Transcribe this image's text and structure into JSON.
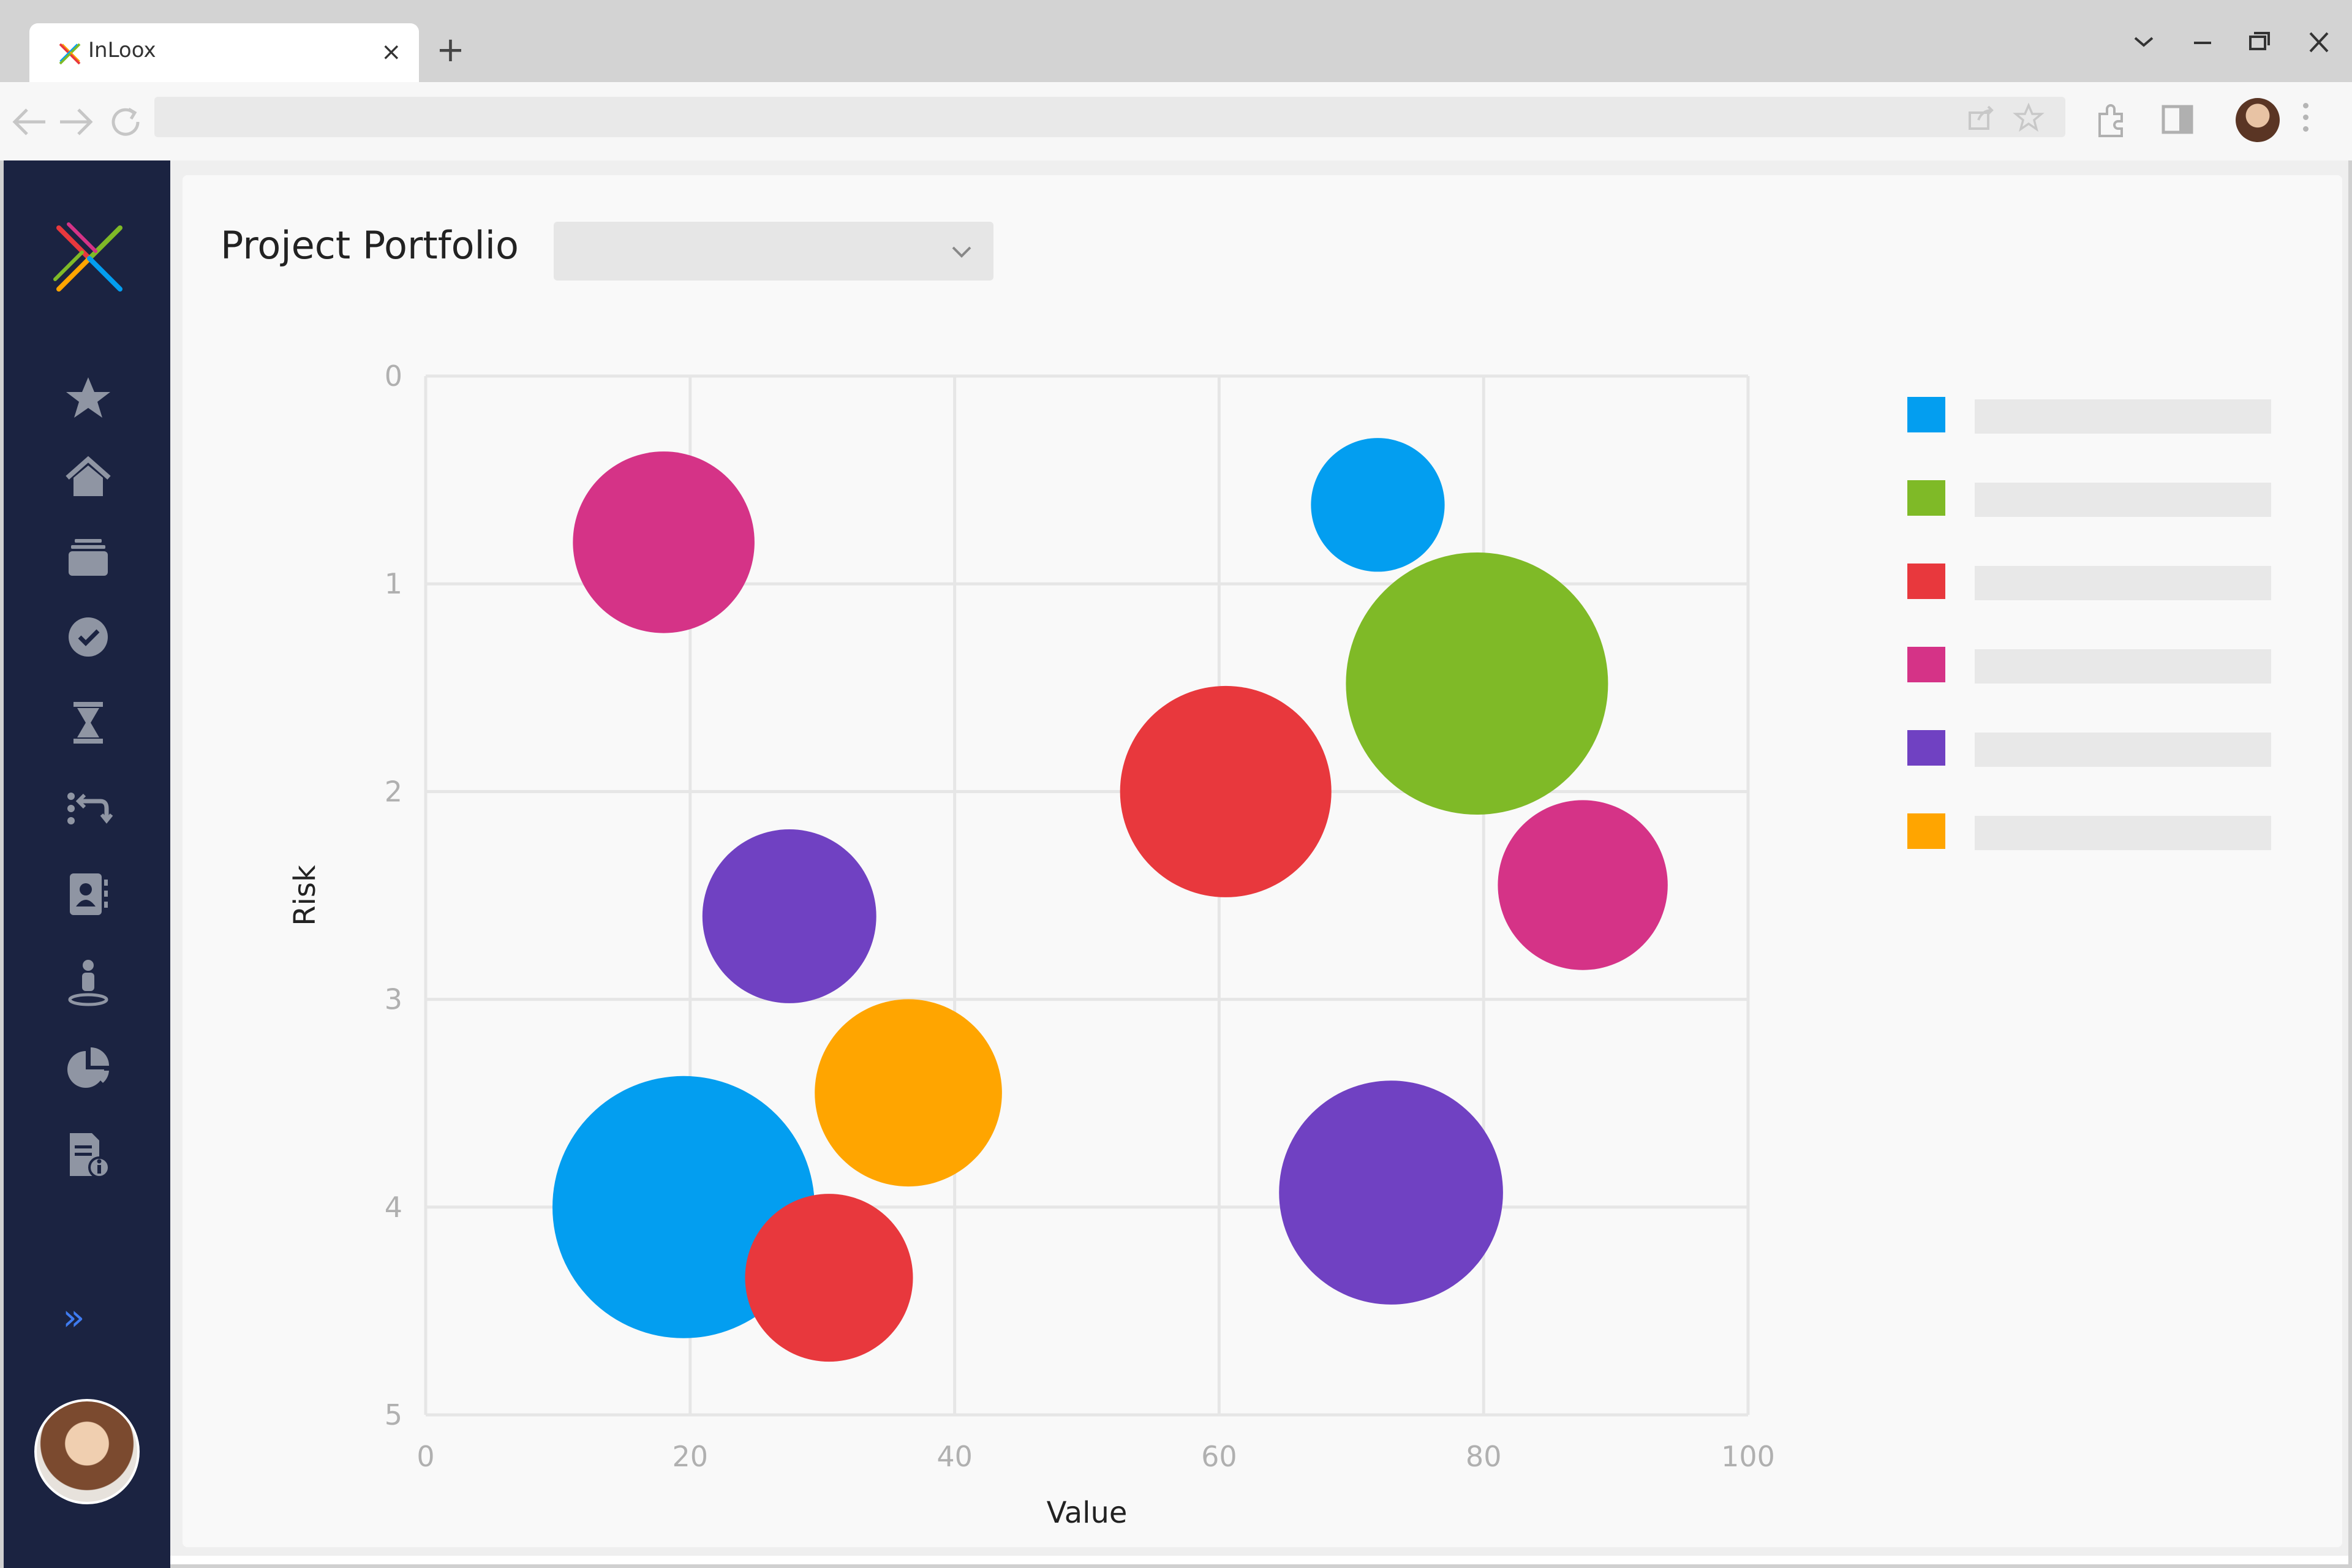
{
  "browser": {
    "tab_title": "InLoox",
    "new_tab_symbol": "+",
    "close_symbol": "×",
    "window_controls": [
      "chevron-down-icon",
      "minimize-icon",
      "restore-icon",
      "close-icon"
    ]
  },
  "sidebar": {
    "items": [
      {
        "name": "favorites-star-icon"
      },
      {
        "name": "home-icon"
      },
      {
        "name": "projects-stack-icon"
      },
      {
        "name": "tasks-check-icon"
      },
      {
        "name": "timetracking-hourglass-icon"
      },
      {
        "name": "workflow-arrows-icon"
      },
      {
        "name": "contacts-icon"
      },
      {
        "name": "resources-person-icon"
      },
      {
        "name": "reports-pie-icon"
      },
      {
        "name": "documents-info-icon"
      }
    ],
    "expand_symbol": "»",
    "accent": "#3f7bf0"
  },
  "page": {
    "title": "Project Portfolio",
    "dropdown_value": ""
  },
  "legend": [
    {
      "color": "#039ef0",
      "label": ""
    },
    {
      "color": "#7fba27",
      "label": ""
    },
    {
      "color": "#e8383d",
      "label": ""
    },
    {
      "color": "#d53387",
      "label": ""
    },
    {
      "color": "#7041c2",
      "label": ""
    },
    {
      "color": "#ffa500",
      "label": ""
    }
  ],
  "chart_data": {
    "type": "scatter",
    "variant": "bubble",
    "xlabel": "Value",
    "ylabel": "Risk",
    "xlim": [
      0,
      100
    ],
    "ylim": [
      0,
      5
    ],
    "y_inverted": true,
    "xticks": [
      "0",
      "20",
      "40",
      "60",
      "80",
      "100"
    ],
    "yticks": [
      "0",
      "1",
      "2",
      "3",
      "4",
      "5"
    ],
    "grid": true,
    "legend_position": "right",
    "points": [
      {
        "x": 18,
        "y": 0.8,
        "size": 4.8,
        "color": "#d53387"
      },
      {
        "x": 72,
        "y": 0.62,
        "size": 2.6,
        "color": "#039ef0"
      },
      {
        "x": 79.5,
        "y": 1.48,
        "size": 10,
        "color": "#7fba27"
      },
      {
        "x": 60.5,
        "y": 2.0,
        "size": 6.5,
        "color": "#e8383d"
      },
      {
        "x": 87.5,
        "y": 2.45,
        "size": 4.2,
        "color": "#d53387"
      },
      {
        "x": 27.5,
        "y": 2.6,
        "size": 4.4,
        "color": "#7041c2"
      },
      {
        "x": 36.5,
        "y": 3.45,
        "size": 5.1,
        "color": "#ffa500"
      },
      {
        "x": 19.5,
        "y": 4.0,
        "size": 10,
        "color": "#039ef0"
      },
      {
        "x": 30.5,
        "y": 4.34,
        "size": 4.1,
        "color": "#e8383d"
      },
      {
        "x": 73,
        "y": 3.93,
        "size": 7.3,
        "color": "#7041c2"
      }
    ]
  }
}
